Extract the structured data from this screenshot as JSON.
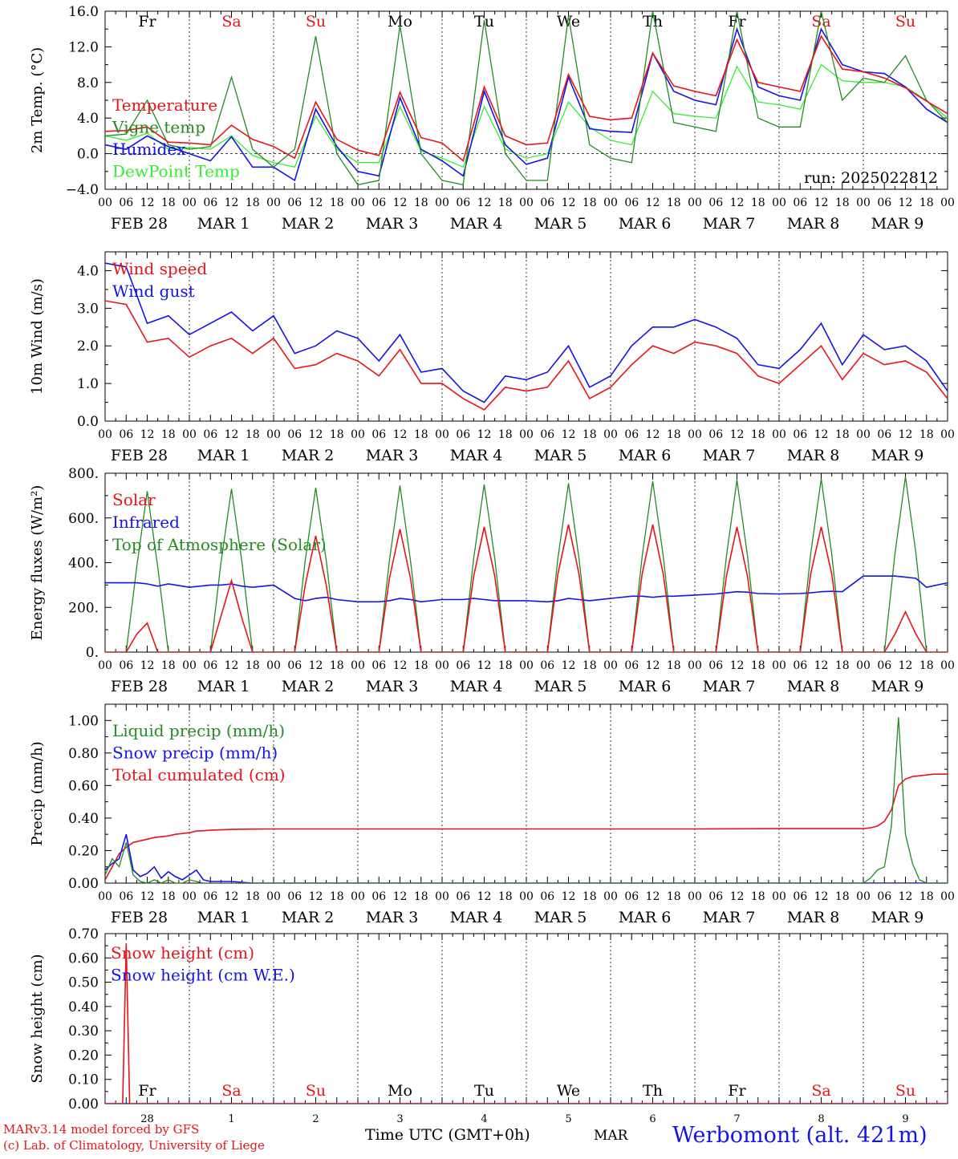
{
  "footer": {
    "model_line": "MARv3.14 model forced by GFS",
    "lab_line": "(c) Lab. of Climatology, University of Liege",
    "xlabel": "Time UTC (GMT+0h)",
    "month": "MAR",
    "station": "Werbomont (alt. 421m)"
  },
  "colors": {
    "red": "#e8141a",
    "green": "#228b22",
    "blue": "#1414e6",
    "lightgreen": "#33ee33",
    "weekend": "#e8141a"
  },
  "days": [
    {
      "dow": "Fr",
      "date": "FEB 28",
      "day_num": "28",
      "weekend": false
    },
    {
      "dow": "Sa",
      "date": "MAR 1",
      "day_num": "1",
      "weekend": true
    },
    {
      "dow": "Su",
      "date": "MAR 2",
      "day_num": "2",
      "weekend": true
    },
    {
      "dow": "Mo",
      "date": "MAR 3",
      "day_num": "3",
      "weekend": false
    },
    {
      "dow": "Tu",
      "date": "MAR 4",
      "day_num": "4",
      "weekend": false
    },
    {
      "dow": "We",
      "date": "MAR 5",
      "day_num": "5",
      "weekend": false
    },
    {
      "dow": "Th",
      "date": "MAR 6",
      "day_num": "6",
      "weekend": false
    },
    {
      "dow": "Fr",
      "date": "MAR 7",
      "day_num": "7",
      "weekend": false
    },
    {
      "dow": "Sa",
      "date": "MAR 8",
      "day_num": "8",
      "weekend": true
    },
    {
      "dow": "Su",
      "date": "MAR 9",
      "day_num": "9",
      "weekend": true
    }
  ],
  "hour_labels": [
    "00",
    "06",
    "12",
    "18"
  ],
  "chart_data": [
    {
      "type": "line",
      "ylabel": "2m Temp. (°C)",
      "ylim": [
        -4,
        16
      ],
      "yticks": [
        "−4.0",
        "0.0",
        "4.0",
        "8.0",
        "12.0",
        "16.0"
      ],
      "ytick_values": [
        -4,
        0,
        4,
        8,
        12,
        16
      ],
      "zero_line": true,
      "annotation": "run: 2025022812",
      "x_hours": [
        0,
        6,
        12,
        18,
        24,
        30,
        36,
        42,
        48,
        54,
        60,
        66,
        72,
        78,
        84,
        90,
        96,
        102,
        108,
        114,
        120,
        126,
        132,
        138,
        144,
        150,
        156,
        162,
        168,
        174,
        180,
        186,
        192,
        198,
        204,
        210,
        216,
        222,
        228,
        234,
        240
      ],
      "series": [
        {
          "name": "Temperature",
          "color": "red",
          "values": [
            2.5,
            2.6,
            3.0,
            1.3,
            1.2,
            1.0,
            3.2,
            1.6,
            0.8,
            -0.5,
            5.8,
            1.6,
            0.4,
            -0.2,
            6.9,
            1.8,
            1.2,
            -0.8,
            7.5,
            2.0,
            1.0,
            1.2,
            8.9,
            4.2,
            3.8,
            4.0,
            11.3,
            7.6,
            7.0,
            6.5,
            12.8,
            8.0,
            7.5,
            7.0,
            13.2,
            9.5,
            9.2,
            8.5,
            7.4,
            5.9,
            4.5
          ]
        },
        {
          "name": "Vigne temp",
          "color": "green",
          "values": [
            2.0,
            2.2,
            6.0,
            1.0,
            0.5,
            0.8,
            8.6,
            0.5,
            -1.5,
            0.5,
            13.2,
            0.0,
            -3.5,
            -3.0,
            14.4,
            0.0,
            -3.0,
            -3.5,
            15.0,
            0.0,
            -3.0,
            -3.0,
            15.5,
            1.0,
            -0.5,
            -1.0,
            16.0,
            3.5,
            3.0,
            2.5,
            16.0,
            4.0,
            3.0,
            3.0,
            16.0,
            6.0,
            8.5,
            8.0,
            11.0,
            6.0,
            3.5
          ]
        },
        {
          "name": "Humidex",
          "color": "blue",
          "values": [
            1.0,
            0.5,
            2.0,
            0.8,
            0.0,
            -0.8,
            1.9,
            -1.5,
            -1.5,
            -3.0,
            5.0,
            0.8,
            -2.0,
            -2.5,
            6.3,
            0.5,
            -0.8,
            -2.5,
            7.0,
            1.0,
            -1.2,
            -0.5,
            8.6,
            2.8,
            2.5,
            2.4,
            11.3,
            7.0,
            6.0,
            5.5,
            14.0,
            7.5,
            6.5,
            6.0,
            14.0,
            10.0,
            9.2,
            9.0,
            7.5,
            5.0,
            3.5
          ]
        },
        {
          "name": "DewPoint Temp",
          "color": "lightgreen",
          "values": [
            2.0,
            1.5,
            2.3,
            0.5,
            0.7,
            0.5,
            2.0,
            -0.2,
            -1.0,
            -1.5,
            4.2,
            0.5,
            -1.0,
            -1.0,
            5.3,
            0.3,
            -0.5,
            -1.5,
            5.3,
            0.5,
            -0.5,
            0.0,
            5.8,
            3.0,
            1.5,
            1.0,
            7.0,
            4.5,
            4.2,
            4.0,
            9.8,
            5.8,
            5.5,
            5.0,
            10.0,
            8.2,
            8.0,
            8.0,
            7.5,
            6.0,
            4.0
          ]
        }
      ]
    },
    {
      "type": "line",
      "ylabel": "10m Wind (m/s)",
      "ylim": [
        0,
        4.5
      ],
      "yticks": [
        "0.0",
        "1.0",
        "2.0",
        "3.0",
        "4.0"
      ],
      "ytick_values": [
        0,
        1,
        2,
        3,
        4
      ],
      "x_hours": [
        0,
        6,
        12,
        18,
        24,
        30,
        36,
        42,
        48,
        54,
        60,
        66,
        72,
        78,
        84,
        90,
        96,
        102,
        108,
        114,
        120,
        126,
        132,
        138,
        144,
        150,
        156,
        162,
        168,
        174,
        180,
        186,
        192,
        198,
        204,
        210,
        216,
        222,
        228,
        234,
        240
      ],
      "series": [
        {
          "name": "Wind speed",
          "color": "red",
          "values": [
            3.2,
            3.1,
            2.1,
            2.2,
            1.7,
            2.0,
            2.2,
            1.8,
            2.2,
            1.4,
            1.5,
            1.8,
            1.6,
            1.2,
            1.9,
            1.0,
            1.0,
            0.6,
            0.3,
            0.9,
            0.8,
            0.9,
            1.6,
            0.6,
            0.9,
            1.5,
            2.0,
            1.8,
            2.1,
            2.0,
            1.8,
            1.2,
            1.0,
            1.5,
            2.0,
            1.1,
            1.8,
            1.5,
            1.6,
            1.3,
            0.6
          ]
        },
        {
          "name": "Wind gust",
          "color": "blue",
          "values": [
            4.2,
            4.1,
            2.6,
            2.8,
            2.3,
            2.6,
            2.9,
            2.4,
            2.8,
            1.8,
            2.0,
            2.4,
            2.2,
            1.6,
            2.3,
            1.3,
            1.4,
            0.8,
            0.5,
            1.2,
            1.1,
            1.3,
            2.0,
            0.9,
            1.2,
            2.0,
            2.5,
            2.5,
            2.7,
            2.5,
            2.2,
            1.5,
            1.4,
            1.9,
            2.6,
            1.5,
            2.3,
            1.9,
            2.0,
            1.6,
            0.8
          ]
        }
      ]
    },
    {
      "type": "line",
      "ylabel": "Energy fluxes (W/m²)",
      "ylim": [
        0,
        800
      ],
      "yticks": [
        "0.",
        "200.",
        "400.",
        "600.",
        "800."
      ],
      "ytick_values": [
        0,
        200,
        400,
        600,
        800
      ],
      "x_hours": [
        0,
        6,
        9,
        12,
        15,
        18,
        24,
        30,
        33,
        36,
        39,
        42,
        48,
        54,
        57,
        60,
        63,
        66,
        72,
        78,
        81,
        84,
        87,
        90,
        96,
        102,
        105,
        108,
        111,
        114,
        120,
        126,
        129,
        132,
        135,
        138,
        144,
        150,
        153,
        156,
        159,
        162,
        168,
        174,
        177,
        180,
        183,
        186,
        192,
        198,
        201,
        204,
        207,
        210,
        216,
        222,
        225,
        228,
        231,
        234,
        240
      ],
      "series": [
        {
          "name": "Solar",
          "color": "red",
          "values": [
            0,
            0,
            80,
            130,
            0,
            0,
            0,
            0,
            160,
            320,
            150,
            0,
            0,
            0,
            300,
            520,
            300,
            0,
            0,
            0,
            330,
            550,
            330,
            0,
            0,
            0,
            340,
            560,
            340,
            0,
            0,
            0,
            350,
            570,
            350,
            0,
            0,
            0,
            350,
            570,
            350,
            0,
            0,
            0,
            340,
            560,
            340,
            0,
            0,
            0,
            350,
            560,
            350,
            0,
            0,
            0,
            80,
            180,
            80,
            0,
            0
          ]
        },
        {
          "name": "Infrared",
          "color": "blue",
          "values": [
            310,
            310,
            310,
            305,
            295,
            305,
            290,
            300,
            300,
            305,
            295,
            290,
            300,
            240,
            230,
            240,
            245,
            235,
            225,
            225,
            230,
            240,
            235,
            225,
            235,
            235,
            240,
            235,
            230,
            230,
            230,
            225,
            230,
            240,
            235,
            230,
            240,
            250,
            250,
            245,
            250,
            250,
            255,
            260,
            265,
            270,
            268,
            262,
            260,
            262,
            265,
            270,
            272,
            270,
            340,
            340,
            340,
            335,
            330,
            290,
            310
          ]
        },
        {
          "name": "Top of Atmosphere (Solar)",
          "color": "green",
          "values": [
            0,
            0,
            380,
            720,
            380,
            0,
            0,
            0,
            400,
            730,
            400,
            0,
            0,
            0,
            410,
            735,
            410,
            0,
            0,
            0,
            410,
            745,
            410,
            0,
            0,
            0,
            420,
            750,
            420,
            0,
            0,
            0,
            420,
            755,
            420,
            0,
            0,
            0,
            430,
            765,
            430,
            0,
            0,
            0,
            430,
            770,
            430,
            0,
            0,
            0,
            440,
            775,
            440,
            0,
            0,
            0,
            440,
            785,
            440,
            0,
            0
          ]
        }
      ]
    },
    {
      "type": "line",
      "ylabel": "Precip (mm/h)",
      "ylim": [
        0,
        1.1
      ],
      "yticks": [
        "0.00",
        "0.20",
        "0.40",
        "0.60",
        "0.80",
        "1.00"
      ],
      "ytick_values": [
        0,
        0.2,
        0.4,
        0.6,
        0.8,
        1.0
      ],
      "x_hours": [
        0,
        2,
        4,
        6,
        8,
        10,
        12,
        14,
        16,
        18,
        20,
        22,
        24,
        26,
        28,
        30,
        36,
        42,
        48,
        60,
        72,
        96,
        120,
        144,
        168,
        192,
        216,
        218,
        220,
        222,
        224,
        226,
        228,
        230,
        232,
        234,
        236,
        238,
        240
      ],
      "series": [
        {
          "name": "Liquid precip (mm/h)",
          "color": "green",
          "values": [
            0.05,
            0.15,
            0.1,
            0.25,
            0.05,
            0.01,
            0.0,
            0.02,
            0.0,
            0.02,
            0.0,
            0.0,
            0.02,
            0.01,
            0.0,
            0.0,
            0.0,
            0.0,
            0.0,
            0.0,
            0.0,
            0.0,
            0.0,
            0.0,
            0.0,
            0.0,
            0.0,
            0.03,
            0.08,
            0.1,
            0.35,
            1.02,
            0.3,
            0.12,
            0.02,
            0.0,
            0.0,
            0.0,
            0.0
          ]
        },
        {
          "name": "Snow precip (mm/h)",
          "color": "blue",
          "values": [
            0.08,
            0.12,
            0.15,
            0.3,
            0.08,
            0.04,
            0.06,
            0.1,
            0.03,
            0.07,
            0.04,
            0.02,
            0.05,
            0.08,
            0.02,
            0.01,
            0.01,
            0.0,
            0.0,
            0.0,
            0.0,
            0.0,
            0.0,
            0.0,
            0.0,
            0.0,
            0.0,
            0.0,
            0.0,
            0.0,
            0.0,
            0.0,
            0.0,
            0.0,
            0.0,
            0.0,
            0.0,
            0.0,
            0.0
          ]
        },
        {
          "name": "Total cumulated (cm)",
          "color": "red",
          "values": [
            0.02,
            0.1,
            0.18,
            0.22,
            0.25,
            0.26,
            0.27,
            0.28,
            0.285,
            0.29,
            0.3,
            0.305,
            0.31,
            0.32,
            0.322,
            0.325,
            0.33,
            0.332,
            0.333,
            0.333,
            0.333,
            0.333,
            0.333,
            0.333,
            0.333,
            0.335,
            0.335,
            0.34,
            0.35,
            0.38,
            0.45,
            0.6,
            0.64,
            0.655,
            0.66,
            0.665,
            0.67,
            0.67,
            0.67
          ]
        }
      ]
    },
    {
      "type": "line",
      "ylabel": "Snow height (cm)",
      "ylim": [
        0,
        0.7
      ],
      "yticks": [
        "0.00",
        "0.10",
        "0.20",
        "0.30",
        "0.40",
        "0.50",
        "0.60",
        "0.70"
      ],
      "ytick_values": [
        0,
        0.1,
        0.2,
        0.3,
        0.4,
        0.5,
        0.6,
        0.7
      ],
      "x_hours": [
        0,
        4,
        5,
        6,
        7,
        240
      ],
      "series": [
        {
          "name": "Snow height (cm)",
          "color": "red",
          "values": [
            0,
            0,
            0.0,
            0.66,
            0.0,
            0
          ]
        },
        {
          "name": "Snow height (cm W.E.)",
          "color": "blue",
          "values": [
            0,
            0,
            0,
            0,
            0,
            0
          ]
        }
      ]
    }
  ]
}
